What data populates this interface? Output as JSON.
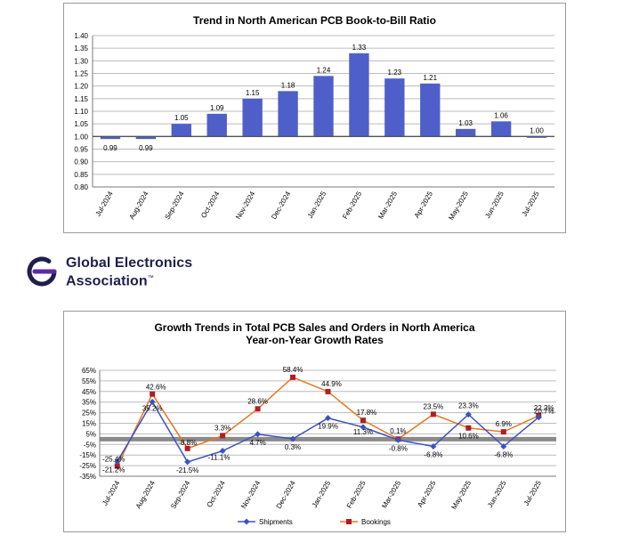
{
  "brand": {
    "name_line1": "Global Electronics",
    "name_line2": "Association",
    "trademark": "™",
    "color": "#1f1f4d",
    "accent": "#5b2aa8"
  },
  "chart_data": [
    {
      "type": "bar",
      "title": "Trend in North American PCB Book-to-Bill Ratio",
      "categories": [
        "Jul-2024",
        "Aug-2024",
        "Sep-2024",
        "Oct-2024",
        "Nov-2024",
        "Dec-2024",
        "Jan-2025",
        "Feb-2025",
        "Mar-2025",
        "Apr-2025",
        "May-2025",
        "Jun-2025",
        "Jul-2025"
      ],
      "values": [
        0.99,
        0.99,
        1.05,
        1.09,
        1.15,
        1.18,
        1.24,
        1.33,
        1.23,
        1.21,
        1.03,
        1.06,
        1.0
      ],
      "data_labels": [
        "0.99",
        "0.99",
        "1.05",
        "1.09",
        "1.15",
        "1.18",
        "1.24",
        "1.33",
        "1.23",
        "1.21",
        "1.03",
        "1.06",
        "1.00"
      ],
      "yticks": [
        "0.80",
        "0.85",
        "0.90",
        "0.95",
        "1.00",
        "1.05",
        "1.10",
        "1.15",
        "1.20",
        "1.25",
        "1.30",
        "1.35",
        "1.40"
      ],
      "ylim": [
        0.8,
        1.4
      ],
      "baseline": 1.0,
      "grid": true,
      "bar_color": "#4f5fc9"
    },
    {
      "type": "line",
      "title": "Growth Trends in Total PCB Sales and Orders in North America",
      "subtitle": "Year-on-Year Growth Rates",
      "categories": [
        "Jul-2024",
        "Aug-2024",
        "Sep-2024",
        "Oct-2024",
        "Nov-2024",
        "Dec-2024",
        "Jan-2025",
        "Feb-2025",
        "Mar-2025",
        "Apr-2025",
        "May-2025",
        "Jun-2025",
        "Jul-2025"
      ],
      "yticks": [
        "65%",
        "55%",
        "45%",
        "35%",
        "25%",
        "15%",
        "5%",
        "-5%",
        "-15%",
        "-25%",
        "-35%"
      ],
      "ylim": [
        -35,
        65
      ],
      "grid": true,
      "legend_position": "bottom",
      "series": [
        {
          "name": "Shipments",
          "color": "#3a52c4",
          "values": [
            -21.2,
            35.2,
            -21.5,
            -11.1,
            4.7,
            0.3,
            19.9,
            11.3,
            -0.8,
            -6.8,
            23.3,
            -6.8,
            20.7
          ],
          "labels": [
            "-21.2%",
            "35.2%",
            "-21.5%",
            "-11.1%",
            "4.7%",
            "0.3%",
            "19.9%",
            "11.3%",
            "-0.8%",
            "-6.8%",
            "23.3%",
            "-6.8%",
            "20.7%"
          ]
        },
        {
          "name": "Bookings",
          "color": "#e87722",
          "marker_color": "#b01e23",
          "values": [
            -25.4,
            42.6,
            -8.8,
            3.3,
            28.6,
            58.4,
            44.9,
            17.8,
            0.1,
            23.5,
            10.6,
            6.9,
            22.2
          ],
          "labels": [
            "-25.4%",
            "42.6%",
            "-8.8%",
            "3.3%",
            "28.6%",
            "58.4%",
            "44.9%",
            "17.8%",
            "0.1%",
            "23.5%",
            "10.6%",
            "6.9%",
            "22.2%"
          ]
        }
      ]
    }
  ]
}
